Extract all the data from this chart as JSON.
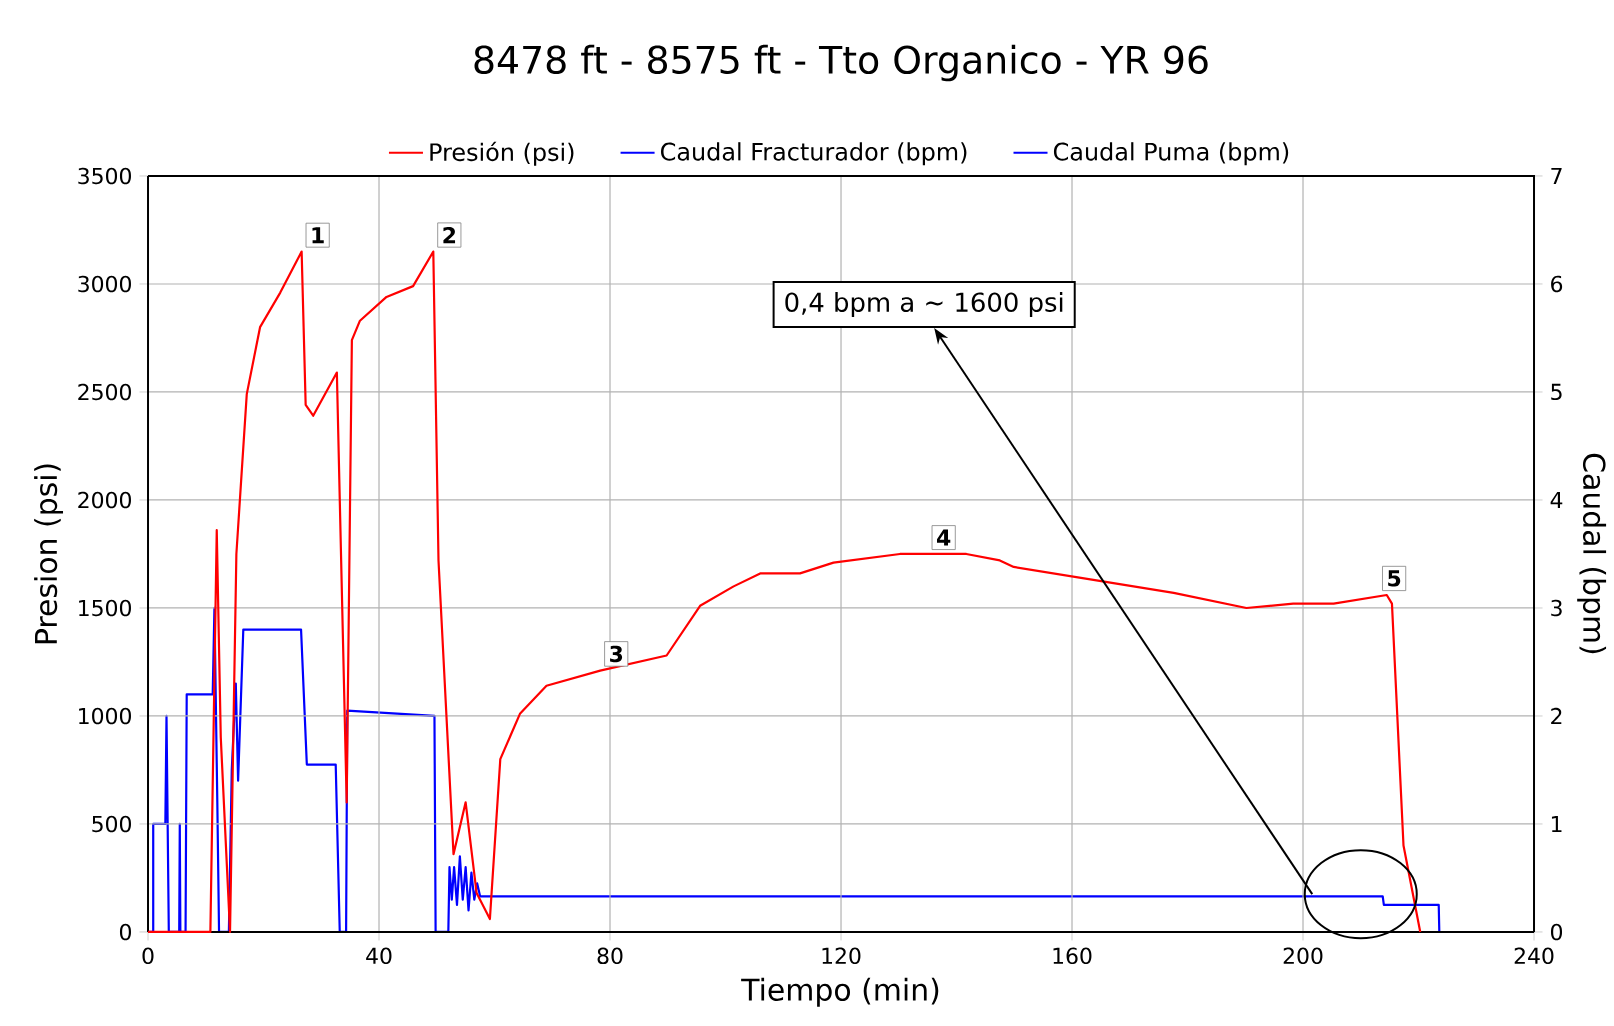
{
  "chart_data": {
    "type": "line",
    "title": "8478 ft - 8575 ft - Tto Organico - YR 96",
    "xlabel": "Tiempo (min)",
    "ylabel": "Presion (psi)",
    "y2label": "Caudal (bpm)",
    "xlim": [
      0,
      240
    ],
    "xticks": [
      0,
      40,
      80,
      120,
      160,
      200,
      240
    ],
    "ylim": [
      0,
      3500
    ],
    "yticks": [
      0,
      500,
      1000,
      1500,
      2000,
      2500,
      3000,
      3500
    ],
    "y2lim": [
      0,
      7
    ],
    "y2ticks": [
      0,
      1,
      2,
      3,
      4,
      5,
      6,
      7
    ],
    "grid": true,
    "legend": "top",
    "marker": "none",
    "series": [
      {
        "name": "Presión (psi)",
        "color": "#ff0000",
        "x": [
          0,
          10.8,
          11.9,
          12.6,
          14.2,
          15.3,
          17.1,
          19.4,
          22.9,
          26.6,
          27.3,
          28.6,
          32.7,
          34.4,
          35.3,
          36.7,
          41.3,
          45.9,
          49.4,
          50.3,
          52.9,
          55.0,
          56.9,
          59.2,
          61.0,
          64.4,
          69.0,
          78.3,
          89.8,
          95.6,
          101.4,
          106,
          112.9,
          118.7,
          130.2,
          141.7,
          147.5,
          149.9,
          163.7,
          177.6,
          190.2,
          198.3,
          205.3,
          214.5,
          215.4,
          217.4,
          220.3
        ],
        "values": [
          0,
          0,
          1860,
          900,
          0,
          1750,
          2490,
          2800,
          2960,
          3150,
          2440,
          2390,
          2590,
          600,
          2740,
          2830,
          2940,
          2990,
          3150,
          1720,
          360,
          600,
          180,
          60,
          800,
          1010,
          1140,
          1210,
          1280,
          1510,
          1600,
          1660,
          1660,
          1710,
          1750,
          1750,
          1720,
          1690,
          1630,
          1570,
          1500,
          1520,
          1520,
          1560,
          1520,
          400,
          0
        ]
      },
      {
        "name": "Caudal Fracturador (bpm)",
        "color": "#0000ff",
        "axis": "y2",
        "x": [
          0,
          0.9,
          0.9,
          3.0,
          3.2,
          3.6,
          5.4,
          5.5,
          5.6,
          6.5,
          6.7,
          11.2,
          11.5,
          12.0,
          12.3,
          14.0,
          14.5,
          15.2,
          15.6,
          16.5,
          26.5,
          27.5,
          32.5,
          33.2,
          34.3,
          34.5,
          49.6,
          49.8,
          52
        ],
        "values": [
          0,
          0,
          1,
          1,
          2.0,
          0,
          0,
          1,
          0,
          0,
          2.2,
          2.2,
          3.0,
          1.2,
          0,
          0,
          1.5,
          2.3,
          1.4,
          2.8,
          2.8,
          1.55,
          1.55,
          0,
          0,
          2.05,
          2.0,
          0,
          0
        ]
      },
      {
        "name": "Caudal Puma (bpm)",
        "color": "#0000ff",
        "axis": "y2",
        "x": [
          52,
          52.2,
          52.6,
          53,
          53.5,
          54,
          54.5,
          55,
          55.5,
          56,
          56.5,
          57,
          57.5,
          213.8,
          214,
          223.5,
          223.6
        ],
        "values": [
          0,
          0.6,
          0.3,
          0.6,
          0.25,
          0.7,
          0.3,
          0.6,
          0.2,
          0.55,
          0.3,
          0.45,
          0.33,
          0.33,
          0.25,
          0.25,
          0
        ]
      }
    ],
    "annotations": [
      {
        "text": "1",
        "x": 26.6,
        "y": 3150
      },
      {
        "text": "2",
        "x": 49.4,
        "y": 3150
      },
      {
        "text": "3",
        "x": 78.3,
        "y": 1210
      },
      {
        "text": "4",
        "x": 135,
        "y": 1750
      },
      {
        "text": "5",
        "x": 213,
        "y": 1560
      },
      "0,4 bpm a ~ 1600 psi"
    ]
  }
}
